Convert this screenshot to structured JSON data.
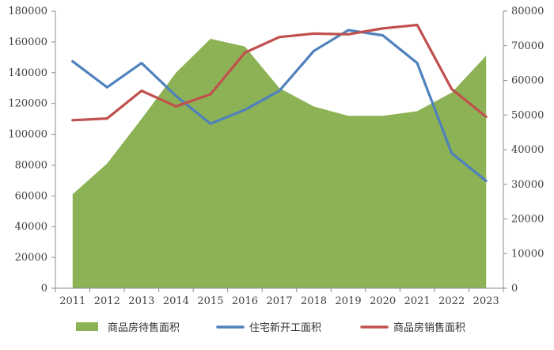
{
  "chart_data": {
    "type": "area",
    "categories": [
      "2011",
      "2012",
      "2013",
      "2014",
      "2015",
      "2016",
      "2017",
      "2018",
      "2019",
      "2020",
      "2021",
      "2022",
      "2023"
    ],
    "series": [
      {
        "name": "商品房待售面积",
        "type": "area",
        "axis": "left",
        "color": "#8db255",
        "values": [
          61000,
          81000,
          110000,
          140000,
          162000,
          157000,
          130000,
          118000,
          112000,
          112000,
          115000,
          127000,
          151000
        ]
      },
      {
        "name": "住宅新开工面积",
        "type": "line",
        "axis": "right",
        "color": "#4f81bd",
        "values": [
          65500,
          58000,
          65000,
          55500,
          47500,
          51500,
          57000,
          68500,
          74500,
          73000,
          65000,
          39000,
          31000
        ]
      },
      {
        "name": "商品房销售面积",
        "type": "line",
        "axis": "right",
        "color": "#c0504d",
        "values": [
          48500,
          49000,
          57000,
          52500,
          56000,
          68000,
          72500,
          73500,
          73300,
          75000,
          76000,
          57500,
          49500
        ]
      }
    ],
    "left_axis": {
      "ticks": [
        "0",
        "20000",
        "40000",
        "60000",
        "80000",
        "100000",
        "120000",
        "140000",
        "160000",
        "180000"
      ],
      "ylim": [
        0,
        180000
      ]
    },
    "right_axis": {
      "ticks": [
        "0",
        "10000",
        "20000",
        "30000",
        "40000",
        "50000",
        "60000",
        "70000",
        "80000"
      ],
      "ylim": [
        0,
        80000
      ]
    },
    "legend_position": "bottom",
    "grid": false
  }
}
